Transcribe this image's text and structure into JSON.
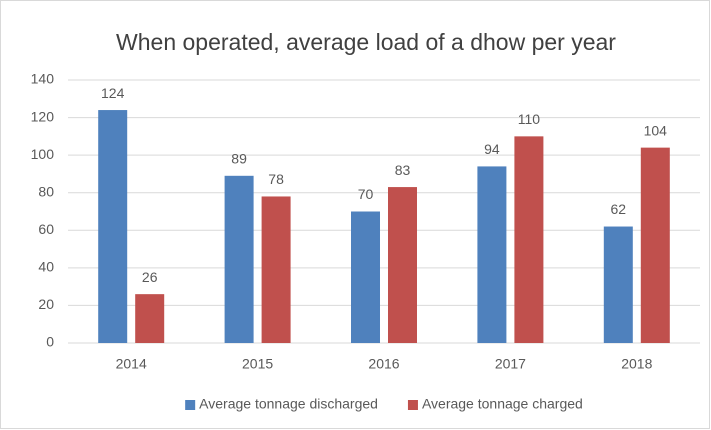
{
  "chart_data": {
    "type": "bar",
    "title": "When operated, average load of a dhow per year",
    "categories": [
      "2014",
      "2015",
      "2016",
      "2017",
      "2018"
    ],
    "series": [
      {
        "name": "Average tonnage discharged",
        "color": "#4f81bd",
        "values": [
          124,
          89,
          70,
          94,
          62
        ]
      },
      {
        "name": "Average tonnage charged",
        "color": "#c0504d",
        "values": [
          26,
          78,
          83,
          110,
          104
        ]
      }
    ],
    "ylim": [
      0,
      140
    ],
    "yticks": [
      0,
      20,
      40,
      60,
      80,
      100,
      120,
      140
    ],
    "grid": true,
    "legend": "bottom"
  }
}
